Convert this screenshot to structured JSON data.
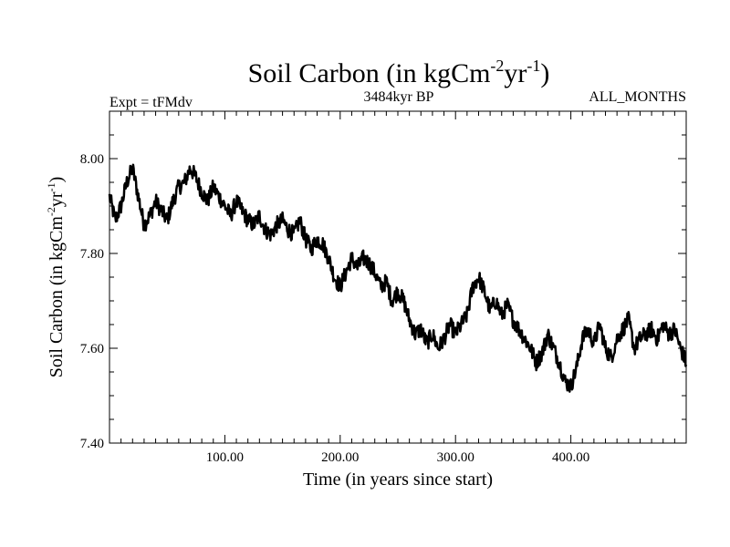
{
  "chart_data": {
    "type": "line",
    "title_main": "Soil Carbon (in kgCm",
    "title_sup1": "-2",
    "title_mid": "yr",
    "title_sup2": "-1",
    "title_end": ")",
    "subtitle_left": "Expt = tFMdv",
    "subtitle_center": "3484kyr BP",
    "subtitle_right": "ALL_MONTHS",
    "xlabel": "Time (in years since start)",
    "ylabel_main": "Soil Carbon (in kgCm",
    "ylabel_sup1": "-2",
    "ylabel_mid": "yr",
    "ylabel_sup2": "-1",
    "ylabel_end": ")",
    "xlim": [
      0,
      500
    ],
    "ylim": [
      7.4,
      8.1
    ],
    "x_ticks": [
      100,
      200,
      300,
      400
    ],
    "x_tick_labels": [
      "100.00",
      "200.00",
      "300.00",
      "400.00"
    ],
    "y_ticks": [
      7.4,
      7.6,
      7.8,
      8.0
    ],
    "y_tick_labels": [
      "7.40",
      "7.60",
      "7.80",
      "8.00"
    ],
    "grid": false,
    "series": [
      {
        "name": "Soil Carbon",
        "color": "#000000",
        "x": [
          0,
          5,
          10,
          15,
          20,
          25,
          30,
          35,
          40,
          45,
          50,
          55,
          60,
          65,
          70,
          75,
          80,
          85,
          90,
          95,
          100,
          105,
          110,
          115,
          120,
          125,
          130,
          135,
          140,
          145,
          150,
          155,
          160,
          165,
          170,
          175,
          180,
          185,
          190,
          195,
          200,
          205,
          210,
          215,
          220,
          225,
          230,
          235,
          240,
          245,
          250,
          255,
          260,
          265,
          270,
          275,
          280,
          285,
          290,
          295,
          300,
          305,
          310,
          315,
          320,
          325,
          330,
          335,
          340,
          345,
          350,
          355,
          360,
          365,
          370,
          375,
          380,
          385,
          390,
          395,
          400,
          405,
          410,
          415,
          420,
          425,
          430,
          435,
          440,
          445,
          450,
          455,
          460,
          465,
          470,
          475,
          480,
          485,
          490,
          495,
          500
        ],
        "values": [
          7.92,
          7.87,
          7.9,
          7.95,
          7.98,
          7.92,
          7.86,
          7.88,
          7.91,
          7.89,
          7.87,
          7.91,
          7.94,
          7.95,
          7.98,
          7.96,
          7.93,
          7.91,
          7.94,
          7.92,
          7.9,
          7.88,
          7.91,
          7.89,
          7.87,
          7.86,
          7.88,
          7.85,
          7.84,
          7.86,
          7.87,
          7.85,
          7.84,
          7.87,
          7.83,
          7.81,
          7.83,
          7.82,
          7.79,
          7.75,
          7.73,
          7.76,
          7.79,
          7.77,
          7.79,
          7.78,
          7.76,
          7.73,
          7.74,
          7.7,
          7.72,
          7.7,
          7.66,
          7.63,
          7.64,
          7.61,
          7.63,
          7.6,
          7.62,
          7.65,
          7.63,
          7.65,
          7.67,
          7.73,
          7.75,
          7.72,
          7.68,
          7.7,
          7.67,
          7.69,
          7.66,
          7.64,
          7.62,
          7.6,
          7.57,
          7.59,
          7.63,
          7.6,
          7.57,
          7.53,
          7.52,
          7.56,
          7.62,
          7.64,
          7.61,
          7.65,
          7.6,
          7.58,
          7.62,
          7.64,
          7.66,
          7.6,
          7.62,
          7.63,
          7.64,
          7.62,
          7.65,
          7.63,
          7.64,
          7.6,
          7.57
        ]
      }
    ]
  }
}
